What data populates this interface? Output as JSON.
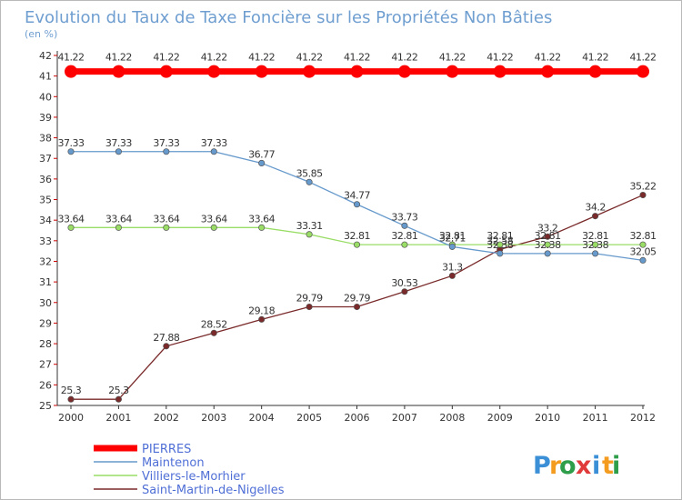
{
  "chart_data": {
    "type": "line",
    "title": "Evolution du Taux de Taxe Foncière sur les Propriétés Non Bâties",
    "ylabel": "(en %)",
    "xlabel": "",
    "x": [
      "2000",
      "2001",
      "2002",
      "2003",
      "2004",
      "2005",
      "2006",
      "2007",
      "2008",
      "2009",
      "2010",
      "2011",
      "2012"
    ],
    "yticks": [
      25,
      26,
      27,
      28,
      29,
      30,
      31,
      32,
      33,
      34,
      35,
      36,
      37,
      38,
      39,
      40,
      41,
      42
    ],
    "ylim": [
      25,
      42
    ],
    "grid": false,
    "legend_position": "bottom-left",
    "series": [
      {
        "name": "PIERRES",
        "color": "#ff0000",
        "values": [
          41.22,
          41.22,
          41.22,
          41.22,
          41.22,
          41.22,
          41.22,
          41.22,
          41.22,
          41.22,
          41.22,
          41.22,
          41.22
        ],
        "labels": [
          "41.22",
          "41.22",
          "41.22",
          "41.22",
          "41.22",
          "41.22",
          "41.22",
          "41.22",
          "41.22",
          "41.22",
          "41.22",
          "41.22",
          "41.22"
        ]
      },
      {
        "name": "Maintenon",
        "color": "#6699cc",
        "values": [
          37.33,
          37.33,
          37.33,
          37.33,
          36.77,
          35.85,
          34.77,
          33.73,
          32.71,
          32.38,
          32.38,
          32.38,
          32.05
        ],
        "labels": [
          "37.33",
          "37.33",
          "37.33",
          "37.33",
          "36.77",
          "35.85",
          "34.77",
          "33.73",
          "32.71",
          "32.38",
          "32.38",
          "32.38",
          "32.05"
        ]
      },
      {
        "name": "Villiers-le-Morhier",
        "color": "#99dd66",
        "values": [
          33.64,
          33.64,
          33.64,
          33.64,
          33.64,
          33.31,
          32.81,
          32.81,
          32.81,
          32.81,
          32.81,
          32.81,
          32.81
        ],
        "labels": [
          "33.64",
          "33.64",
          "33.64",
          "33.64",
          "33.64",
          "33.31",
          "32.81",
          "32.81",
          "32.81",
          "32.81",
          "32.81",
          "32.81",
          "32.81"
        ]
      },
      {
        "name": "Saint-Martin-de-Nigelles",
        "color": "#7a2a2a",
        "values": [
          25.3,
          25.3,
          27.88,
          28.52,
          29.18,
          29.79,
          29.79,
          30.53,
          31.3,
          32.58,
          33.2,
          34.2,
          35.22
        ],
        "labels": [
          "25.3",
          "25.3",
          "27.88",
          "28.52",
          "29.18",
          "29.79",
          "29.79",
          "30.53",
          "31.3",
          "32.58",
          "33.2",
          "34.2",
          "35.22"
        ]
      }
    ]
  },
  "brand": {
    "letters": [
      "P",
      "r",
      "o",
      "x",
      "i",
      "t",
      "i"
    ],
    "colors": [
      "#3a8fd6",
      "#f39c1f",
      "#2e9e4a",
      "#e03a3a",
      "#3a8fd6",
      "#f39c1f",
      "#2e9e4a"
    ]
  }
}
